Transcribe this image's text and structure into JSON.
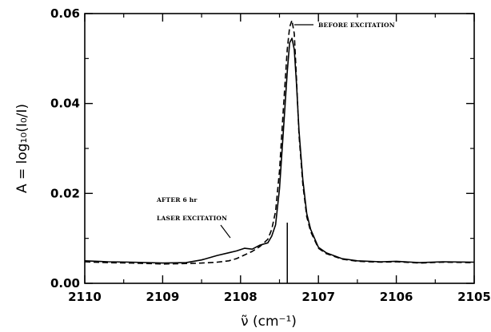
{
  "chart_data": {
    "type": "line",
    "xlabel": "ν̃ (cm⁻¹)",
    "ylabel": "A = log₁₀(I₀/I)",
    "xlim": [
      2110,
      2105
    ],
    "ylim": [
      0,
      0.06
    ],
    "xticks": [
      "2110",
      "2109",
      "2108",
      "2107",
      "2106",
      "2105"
    ],
    "yticks": [
      "0.00",
      "0.02",
      "0.04",
      "0.06"
    ],
    "x_reversed": true,
    "grid": false,
    "annotations": {
      "before": "BEFORE EXCITATION",
      "after_line1": "AFTER 6 hr",
      "after_line2": "LASER EXCITATION"
    },
    "laser_line_x": 2107.4,
    "series": [
      {
        "style": "solid",
        "color": "#000000",
        "x": [
          2110,
          2109.7,
          2109.4,
          2109.0,
          2108.7,
          2108.5,
          2108.3,
          2108.15,
          2108.05,
          2107.95,
          2107.85,
          2107.75,
          2107.65,
          2107.6,
          2107.55,
          2107.5,
          2107.45,
          2107.4,
          2107.37,
          2107.34,
          2107.31,
          2107.28,
          2107.25,
          2107.2,
          2107.15,
          2107.1,
          2107.0,
          2106.9,
          2106.7,
          2106.5,
          2106.2,
          2106.0,
          2105.7,
          2105.4,
          2105.0
        ],
        "y": [
          0.005,
          0.0048,
          0.0047,
          0.0045,
          0.0046,
          0.0052,
          0.0062,
          0.0068,
          0.0072,
          0.0078,
          0.0076,
          0.0085,
          0.009,
          0.0105,
          0.013,
          0.021,
          0.034,
          0.047,
          0.0535,
          0.0545,
          0.052,
          0.044,
          0.034,
          0.023,
          0.0155,
          0.012,
          0.008,
          0.0068,
          0.0055,
          0.005,
          0.0048,
          0.0049,
          0.0046,
          0.0048,
          0.0047
        ]
      },
      {
        "style": "dashed",
        "color": "#000000",
        "x": [
          2110,
          2109.7,
          2109.4,
          2109.0,
          2108.7,
          2108.5,
          2108.3,
          2108.15,
          2108.05,
          2107.95,
          2107.85,
          2107.75,
          2107.65,
          2107.6,
          2107.55,
          2107.5,
          2107.45,
          2107.4,
          2107.37,
          2107.34,
          2107.31,
          2107.28,
          2107.25,
          2107.2,
          2107.15,
          2107.1,
          2107.0,
          2106.9,
          2106.7,
          2106.5,
          2106.2,
          2106.0,
          2105.7,
          2105.4,
          2105.0
        ],
        "y": [
          0.0048,
          0.0046,
          0.0045,
          0.0043,
          0.0044,
          0.0045,
          0.0047,
          0.005,
          0.0055,
          0.0063,
          0.0071,
          0.0082,
          0.0098,
          0.012,
          0.016,
          0.025,
          0.039,
          0.052,
          0.057,
          0.0585,
          0.0555,
          0.045,
          0.033,
          0.022,
          0.0148,
          0.0115,
          0.0078,
          0.0066,
          0.0054,
          0.0049,
          0.0047,
          0.0048,
          0.0045,
          0.0047,
          0.0046
        ]
      }
    ]
  }
}
